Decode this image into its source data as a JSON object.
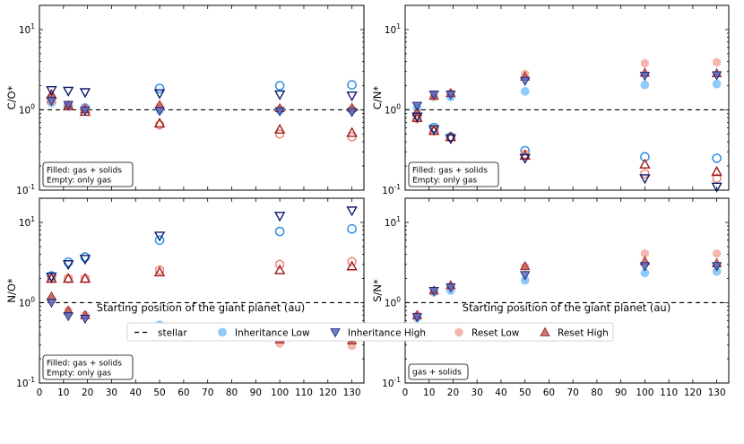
{
  "figure": {
    "xlabel": "Starting position of the giant planet (au)",
    "colors": {
      "inh_low_edge": "#1e88e5",
      "inh_low_fill": "#90caf9",
      "inh_high_edge": "#0d1b6e",
      "inh_high_fill": "#5c6bc0",
      "reset_low_edge": "#f08070",
      "reset_low_fill": "#f4b6ae",
      "reset_high_edge": "#9b1b1b",
      "reset_high_fill": "#c0605e"
    },
    "legend": {
      "stellar": "stellar",
      "inh_low": "Inheritance Low",
      "inh_high": "Inheritance High",
      "reset_low": "Reset Low",
      "reset_high": "Reset High"
    }
  },
  "chart_data": [
    {
      "type": "scatter",
      "panel": "top-left",
      "ylabel": "C/O*",
      "yscale": "log",
      "ylim": [
        0.1,
        20
      ],
      "xlim": [
        0,
        135
      ],
      "xticks": [
        0,
        10,
        20,
        30,
        40,
        50,
        60,
        70,
        80,
        90,
        100,
        110,
        120,
        130
      ],
      "show_xticklabels": false,
      "reference_line": 1.0,
      "annotation": [
        "Filled: gas + solids",
        "Empty: only gas"
      ],
      "x": [
        5,
        12,
        19,
        50,
        100,
        130
      ],
      "series": [
        {
          "name": "Inheritance Low",
          "key": "inh_low",
          "filled": [
            1.22,
            1.1,
            1.04,
            1.0,
            0.99,
            0.99
          ],
          "empty": [
            1.25,
            1.12,
            1.05,
            1.85,
            2.0,
            2.05
          ]
        },
        {
          "name": "Inheritance High",
          "key": "inh_high",
          "filled": [
            1.3,
            1.15,
            0.98,
            0.97,
            0.96,
            0.94
          ],
          "empty": [
            1.75,
            1.72,
            1.65,
            1.6,
            1.55,
            1.5
          ]
        },
        {
          "name": "Reset Low",
          "key": "reset_low",
          "filled": [
            1.42,
            1.12,
            1.0,
            1.1,
            1.02,
            1.02
          ],
          "empty": [
            1.3,
            1.12,
            1.02,
            0.65,
            0.5,
            0.46
          ]
        },
        {
          "name": "Reset High",
          "key": "reset_high",
          "filled": [
            1.55,
            1.12,
            1.02,
            1.15,
            1.05,
            1.06
          ],
          "empty": [
            1.55,
            1.12,
            0.95,
            0.68,
            0.57,
            0.52
          ]
        }
      ]
    },
    {
      "type": "scatter",
      "panel": "top-right",
      "ylabel": "C/N*",
      "yscale": "log",
      "ylim": [
        0.1,
        20
      ],
      "xlim": [
        0,
        135
      ],
      "xticks": [
        0,
        10,
        20,
        30,
        40,
        50,
        60,
        70,
        80,
        90,
        100,
        110,
        120,
        130
      ],
      "show_xticklabels": false,
      "reference_line": 1.0,
      "annotation": [
        "Filled: gas + solids",
        "Empty: only gas"
      ],
      "x": [
        5,
        12,
        19,
        50,
        100,
        130
      ],
      "series": [
        {
          "name": "Inheritance Low",
          "key": "inh_low",
          "filled": [
            1.05,
            1.45,
            1.45,
            1.7,
            2.05,
            2.1
          ],
          "empty": [
            0.85,
            0.6,
            0.46,
            0.31,
            0.26,
            0.25
          ]
        },
        {
          "name": "Inheritance High",
          "key": "inh_high",
          "filled": [
            1.12,
            1.55,
            1.55,
            2.3,
            2.65,
            2.7
          ],
          "empty": [
            0.82,
            0.57,
            0.44,
            0.25,
            0.14,
            0.11
          ]
        },
        {
          "name": "Reset Low",
          "key": "reset_low",
          "filled": [
            0.85,
            1.45,
            1.6,
            2.8,
            3.8,
            3.9
          ],
          "empty": [
            0.78,
            0.55,
            0.45,
            0.28,
            0.16,
            0.14
          ]
        },
        {
          "name": "Reset High",
          "key": "reset_high",
          "filled": [
            0.95,
            1.5,
            1.62,
            2.6,
            2.9,
            2.85
          ],
          "empty": [
            0.8,
            0.55,
            0.46,
            0.27,
            0.21,
            0.17
          ]
        }
      ]
    },
    {
      "type": "scatter",
      "panel": "bottom-left",
      "ylabel": "N/O*",
      "yscale": "log",
      "ylim": [
        0.1,
        20
      ],
      "xlim": [
        0,
        135
      ],
      "xticks": [
        0,
        10,
        20,
        30,
        40,
        50,
        60,
        70,
        80,
        90,
        100,
        110,
        120,
        130
      ],
      "show_xticklabels": true,
      "reference_line": 1.0,
      "annotation": [
        "Filled: gas + solids",
        "Empty: only gas"
      ],
      "x": [
        5,
        12,
        19,
        50,
        100,
        130
      ],
      "series": [
        {
          "name": "Inheritance Low",
          "key": "inh_low",
          "filled": [
            1.1,
            0.75,
            0.7,
            0.53,
            0.44,
            0.43
          ],
          "empty": [
            2.15,
            3.2,
            3.7,
            6.0,
            7.7,
            8.3
          ]
        },
        {
          "name": "Inheritance High",
          "key": "inh_high",
          "filled": [
            1.0,
            0.68,
            0.63,
            0.45,
            0.38,
            0.37
          ],
          "empty": [
            2.1,
            3.0,
            3.5,
            6.8,
            12.0,
            14.0
          ]
        },
        {
          "name": "Reset Low",
          "key": "reset_low",
          "filled": [
            1.1,
            0.8,
            0.7,
            0.4,
            0.31,
            0.29
          ],
          "empty": [
            2.0,
            2.0,
            2.0,
            2.55,
            3.0,
            3.25
          ]
        },
        {
          "name": "Reset High",
          "key": "reset_high",
          "filled": [
            1.2,
            0.8,
            0.7,
            0.45,
            0.35,
            0.34
          ],
          "empty": [
            2.0,
            2.0,
            2.0,
            2.4,
            2.55,
            2.85
          ]
        }
      ]
    },
    {
      "type": "scatter",
      "panel": "bottom-right",
      "ylabel": "S/N*",
      "yscale": "log",
      "ylim": [
        0.1,
        20
      ],
      "xlim": [
        0,
        135
      ],
      "xticks": [
        0,
        10,
        20,
        30,
        40,
        50,
        60,
        70,
        80,
        90,
        100,
        110,
        120,
        130
      ],
      "show_xticklabels": true,
      "reference_line": 1.0,
      "annotation": [
        "gas + solids"
      ],
      "x": [
        5,
        12,
        19,
        50,
        100,
        130
      ],
      "series": [
        {
          "name": "Inheritance Low",
          "key": "inh_low",
          "filled": [
            0.65,
            1.35,
            1.42,
            1.9,
            2.35,
            2.45
          ],
          "empty": null
        },
        {
          "name": "Inheritance High",
          "key": "inh_high",
          "filled": [
            0.66,
            1.4,
            1.55,
            2.2,
            2.85,
            2.85
          ],
          "empty": null
        },
        {
          "name": "Reset Low",
          "key": "reset_low",
          "filled": [
            0.7,
            1.4,
            1.6,
            2.8,
            4.1,
            4.1
          ],
          "empty": null
        },
        {
          "name": "Reset High",
          "key": "reset_high",
          "filled": [
            0.7,
            1.42,
            1.65,
            2.85,
            3.3,
            3.1
          ],
          "empty": null
        }
      ]
    }
  ]
}
